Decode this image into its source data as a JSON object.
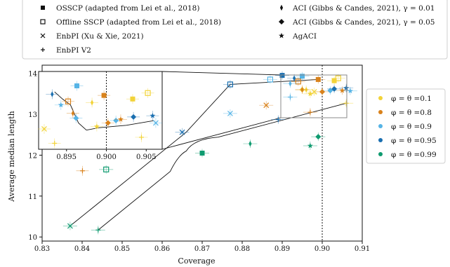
{
  "chart_data": {
    "type": "scatter",
    "xlabel": "Coverage",
    "ylabel": "Average median length",
    "xlim": [
      0.83,
      0.91
    ],
    "ylim": [
      9.9,
      14.2
    ],
    "x_ticks": [
      "0.83",
      "0.84",
      "0.85",
      "0.86",
      "0.87",
      "0.88",
      "0.89",
      "0.90",
      "0.91"
    ],
    "y_ticks": [
      "10",
      "11",
      "12",
      "13",
      "14"
    ],
    "target_line_x": 0.9,
    "grid": false,
    "methods_legend": [
      {
        "label": "OSSCP (adapted from Lei et al., 2018)",
        "marker": "square"
      },
      {
        "label": "Offline SSCP (adapted from Lei et al., 2018)",
        "marker": "square-open"
      },
      {
        "label": "EnbPI (Xu & Xie, 2021)",
        "marker": "x"
      },
      {
        "label": "EnbPI V2",
        "marker": "plus"
      },
      {
        "label": "ACI (Gibbs & Candes, 2021), γ = 0.01",
        "marker": "thin-diamond"
      },
      {
        "label": "ACI (Gibbs & Candes, 2021), γ = 0.05",
        "marker": "diamond"
      },
      {
        "label": "AgACI",
        "marker": "star"
      }
    ],
    "series": [
      {
        "name": "φ = θ =0.1",
        "color": "#f2d338",
        "points": [
          {
            "method": "OSSCP",
            "x": 0.903,
            "y": 13.82
          },
          {
            "method": "Offline SSCP",
            "x": 0.904,
            "y": 13.88
          },
          {
            "method": "EnbPI",
            "x": 0.898,
            "y": 13.55
          },
          {
            "method": "EnbPI V2",
            "x": 0.906,
            "y": 13.27
          },
          {
            "method": "ACI 0.01",
            "x": 0.896,
            "y": 13.6
          },
          {
            "method": "ACI 0.05",
            "x": 0.895,
            "y": 13.6
          },
          {
            "method": "AgACI",
            "x": 0.897,
            "y": 13.5
          }
        ]
      },
      {
        "name": "φ = θ =0.8",
        "color": "#d9821b",
        "points": [
          {
            "method": "OSSCP",
            "x": 0.899,
            "y": 13.85
          },
          {
            "method": "Offline SSCP",
            "x": 0.894,
            "y": 13.8
          },
          {
            "method": "EnbPI",
            "x": 0.886,
            "y": 13.22
          },
          {
            "method": "EnbPI V2",
            "x": 0.897,
            "y": 13.05
          },
          {
            "method": "ACI 0.01",
            "x": 0.895,
            "y": 13.6
          },
          {
            "method": "ACI 0.05",
            "x": 0.9,
            "y": 13.55
          },
          {
            "method": "AgACI",
            "x": 0.905,
            "y": 13.58
          }
        ]
      },
      {
        "name": "φ = θ =0.9",
        "color": "#56b4e6",
        "points": [
          {
            "method": "OSSCP",
            "x": 0.895,
            "y": 13.93
          },
          {
            "method": "Offline SSCP",
            "x": 0.887,
            "y": 13.85
          },
          {
            "method": "EnbPI",
            "x": 0.877,
            "y": 13.02
          },
          {
            "method": "EnbPI V2",
            "x": 0.892,
            "y": 13.42
          },
          {
            "method": "ACI 0.01",
            "x": 0.892,
            "y": 13.75
          },
          {
            "method": "ACI 0.05",
            "x": 0.902,
            "y": 13.58
          },
          {
            "method": "AgACI",
            "x": 0.907,
            "y": 13.57
          }
        ]
      },
      {
        "name": "φ = θ =0.95",
        "color": "#1a6fb0",
        "points": [
          {
            "method": "OSSCP",
            "x": 0.89,
            "y": 13.95
          },
          {
            "method": "Offline SSCP",
            "x": 0.877,
            "y": 13.73
          },
          {
            "method": "EnbPI",
            "x": 0.865,
            "y": 12.56
          },
          {
            "method": "EnbPI V2",
            "x": 0.889,
            "y": 12.87
          },
          {
            "method": "ACI 0.01",
            "x": 0.893,
            "y": 13.88
          },
          {
            "method": "ACI 0.05",
            "x": 0.903,
            "y": 13.62
          },
          {
            "method": "AgACI",
            "x": 0.906,
            "y": 13.64
          }
        ]
      },
      {
        "name": "φ = θ =0.99",
        "color": "#0f9b70",
        "points": [
          {
            "method": "OSSCP",
            "x": 0.87,
            "y": 12.05
          },
          {
            "method": "Offline SSCP",
            "x": 0.846,
            "y": 11.65
          },
          {
            "method": "EnbPI",
            "x": 0.837,
            "y": 10.27
          },
          {
            "method": "EnbPI V2",
            "x": 0.844,
            "y": 10.17
          },
          {
            "method": "ACI 0.01",
            "x": 0.882,
            "y": 12.28
          },
          {
            "method": "ACI 0.05",
            "x": 0.899,
            "y": 12.45
          },
          {
            "method": "AgACI",
            "x": 0.897,
            "y": 12.23
          }
        ]
      }
    ],
    "inset": {
      "x_ticks": [
        "0.895",
        "0.900",
        "0.905"
      ],
      "xlim": [
        0.8915,
        0.907
      ],
      "ylim": [
        13.4,
        14.05
      ]
    }
  }
}
